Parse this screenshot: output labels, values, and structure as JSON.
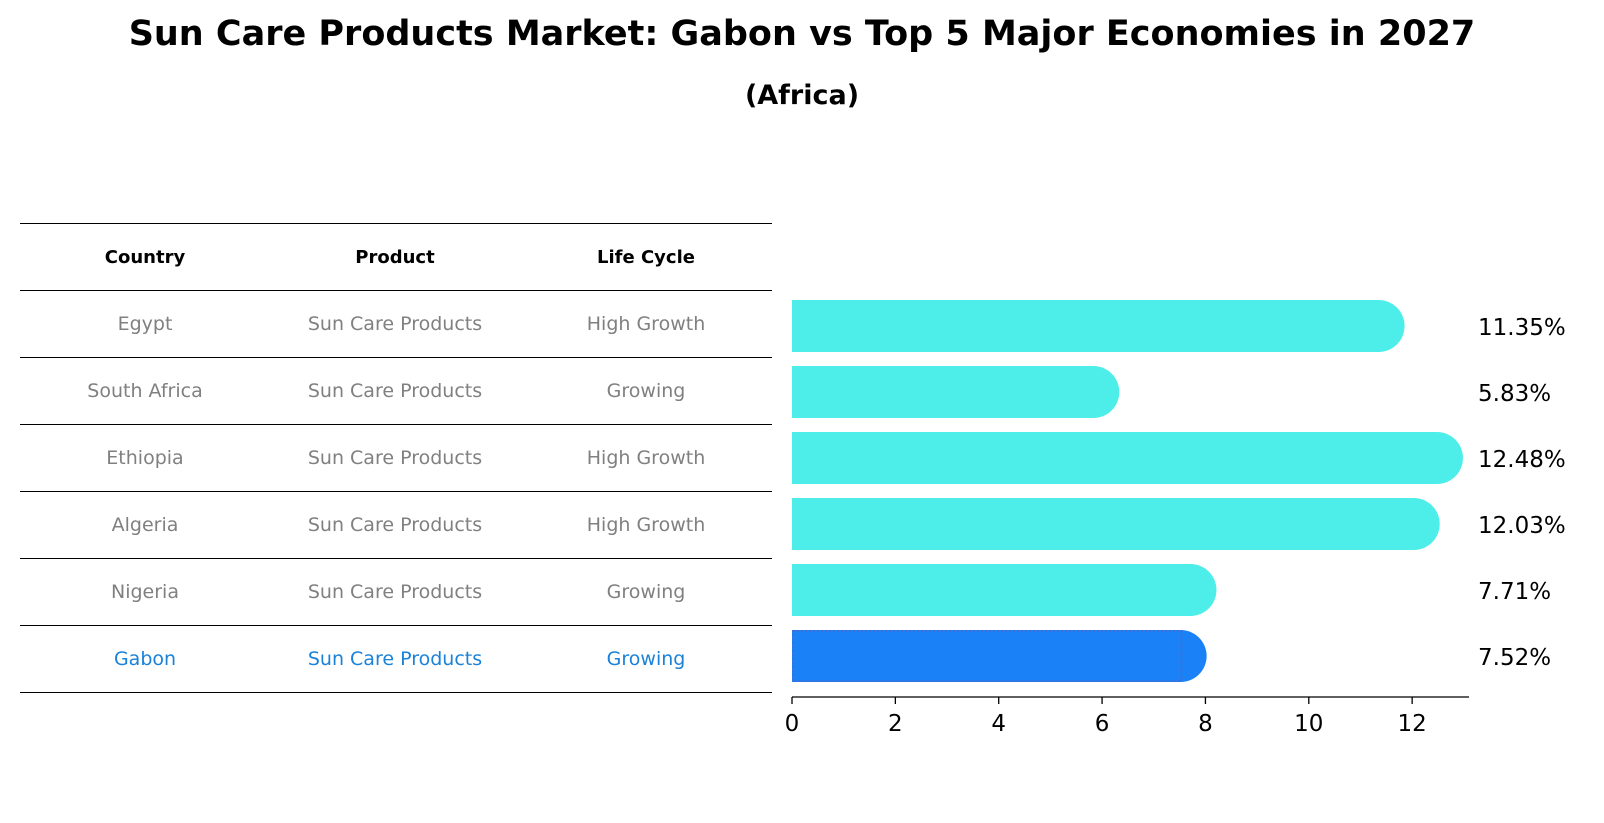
{
  "title": "Sun Care Products Market: Gabon vs Top 5 Major Economies in 2027",
  "subtitle": "(Africa)",
  "table": {
    "headers": [
      "Country",
      "Product",
      "Life Cycle"
    ],
    "rows": [
      {
        "country": "Egypt",
        "product": "Sun Care Products",
        "life_cycle": "High Growth"
      },
      {
        "country": "South Africa",
        "product": "Sun Care Products",
        "life_cycle": "Growing"
      },
      {
        "country": "Ethiopia",
        "product": "Sun Care Products",
        "life_cycle": "High Growth"
      },
      {
        "country": "Algeria",
        "product": "Sun Care Products",
        "life_cycle": "High Growth"
      },
      {
        "country": "Nigeria",
        "product": "Sun Care Products",
        "life_cycle": "Growing"
      },
      {
        "country": "Gabon",
        "product": "Sun Care Products",
        "life_cycle": "Growing"
      }
    ]
  },
  "colors": {
    "bar": "#4deeea",
    "highlight": "#1a82f6",
    "highlight_text": "#1a82d8",
    "muted_text": "#808080"
  },
  "chart_data": {
    "type": "bar",
    "orientation": "horizontal",
    "categories": [
      "Egypt",
      "South Africa",
      "Ethiopia",
      "Algeria",
      "Nigeria",
      "Gabon"
    ],
    "values": [
      11.35,
      5.83,
      12.48,
      12.03,
      7.71,
      7.52
    ],
    "value_labels": [
      "11.35%",
      "5.83%",
      "12.48%",
      "12.03%",
      "7.71%",
      "7.52%"
    ],
    "highlight": "Gabon",
    "xlim": [
      0,
      13.1
    ],
    "xticks": [
      0,
      2,
      4,
      6,
      8,
      10,
      12
    ],
    "grid": false
  }
}
